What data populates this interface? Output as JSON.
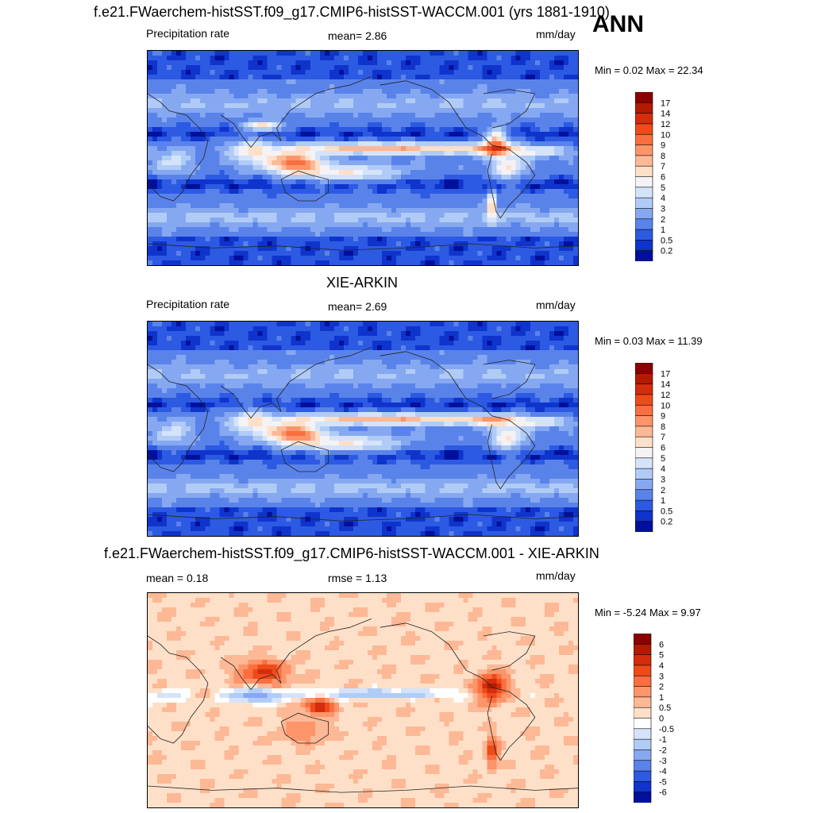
{
  "figure": {
    "season": "ANN",
    "panel1_title": "f.e21.FWaerchem-histSST.f09_g17.CMIP6-histSST-WACCM.001 (yrs 1881-1910)",
    "panel2_title": "XIE-ARKIN",
    "panel3_title": "f.e21.FWaerchem-histSST.f09_g17.CMIP6-histSST-WACCM.001 - XIE-ARKIN"
  },
  "panels": [
    {
      "left_label": "Precipitation rate",
      "center_label": "mean=   2.86",
      "units": "mm/day",
      "minmax": "Min =   0.02 Max =  22.34"
    },
    {
      "left_label": "Precipitation rate",
      "center_label": "mean=   2.69",
      "units": "mm/day",
      "minmax": "Min =   0.03 Max =  11.39"
    },
    {
      "left_label": "mean =   0.18",
      "center_label": "rmse =   1.13",
      "units": "mm/day",
      "minmax": "Min =  -5.24 Max =   9.97"
    }
  ],
  "chart_data": [
    {
      "type": "heatmap",
      "title": "f.e21.FWaerchem-histSST.f09_g17.CMIP6-histSST-WACCM.001 (yrs 1881-1910)",
      "variable": "Precipitation rate",
      "units": "mm/day",
      "mean": 2.86,
      "min": 0.02,
      "max": 22.34,
      "colorbar_levels": [
        "17",
        "14",
        "12",
        "10",
        "9",
        "8",
        "7",
        "6",
        "5",
        "4",
        "3",
        "2",
        "1",
        "0.5",
        "0.2"
      ],
      "colorbar_colors": [
        "#8b0000",
        "#b31b00",
        "#d42c0c",
        "#ee4a1a",
        "#fa6e3f",
        "#fd946a",
        "#fdb896",
        "#fee0c8",
        "#f4f2f4",
        "#d5e3fa",
        "#b0ccf6",
        "#86a8f0",
        "#5a83ea",
        "#2d5ae2",
        "#0f34cc",
        "#00109a"
      ]
    },
    {
      "type": "heatmap",
      "title": "XIE-ARKIN",
      "variable": "Precipitation rate",
      "units": "mm/day",
      "mean": 2.69,
      "min": 0.03,
      "max": 11.39,
      "colorbar_levels": [
        "17",
        "14",
        "12",
        "10",
        "9",
        "8",
        "7",
        "6",
        "5",
        "4",
        "3",
        "2",
        "1",
        "0.5",
        "0.2"
      ],
      "colorbar_colors": [
        "#8b0000",
        "#b31b00",
        "#d42c0c",
        "#ee4a1a",
        "#fa6e3f",
        "#fd946a",
        "#fdb896",
        "#fee0c8",
        "#f4f2f4",
        "#d5e3fa",
        "#b0ccf6",
        "#86a8f0",
        "#5a83ea",
        "#2d5ae2",
        "#0f34cc",
        "#00109a"
      ]
    },
    {
      "type": "heatmap",
      "title": "f.e21.FWaerchem-histSST.f09_g17.CMIP6-histSST-WACCM.001 - XIE-ARKIN",
      "units": "mm/day",
      "mean": 0.18,
      "rmse": 1.13,
      "min": -5.24,
      "max": 9.97,
      "colorbar_levels": [
        "6",
        "5",
        "4",
        "3",
        "2",
        "1",
        "0.5",
        "0",
        "-0.5",
        "-1",
        "-2",
        "-3",
        "-4",
        "-5",
        "-6"
      ],
      "colorbar_colors": [
        "#8b0000",
        "#b31b00",
        "#d42c0c",
        "#ee4a1a",
        "#fa6e3f",
        "#fd946a",
        "#fdb896",
        "#fee0c8",
        "#ffffff",
        "#d5e3fa",
        "#b0ccf6",
        "#86a8f0",
        "#5a83ea",
        "#2d5ae2",
        "#0f34cc",
        "#00109a"
      ]
    }
  ]
}
